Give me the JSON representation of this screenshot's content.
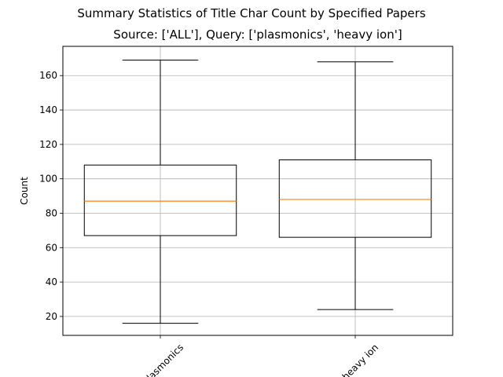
{
  "chart_data": {
    "type": "box",
    "title": "Summary Statistics of Title Char Count by Specified Papers",
    "subtitle": "Source: ['ALL'], Query: ['plasmonics', 'heavy ion']",
    "xlabel": "",
    "ylabel": "Count",
    "ylim": [
      9,
      177
    ],
    "yticks": [
      20,
      40,
      60,
      80,
      100,
      120,
      140,
      160
    ],
    "grid": true,
    "categories": [
      "plasmonics",
      "heavy ion"
    ],
    "boxes": [
      {
        "category": "plasmonics",
        "whisker_low": 16,
        "q1": 67,
        "median": 87,
        "q3": 108,
        "whisker_high": 169
      },
      {
        "category": "heavy ion",
        "whisker_low": 24,
        "q1": 66,
        "median": 88,
        "q3": 111,
        "whisker_high": 168
      }
    ],
    "colors": {
      "box": "#000000",
      "median": "#ff7f0e",
      "grid": "#b0b0b0"
    }
  }
}
